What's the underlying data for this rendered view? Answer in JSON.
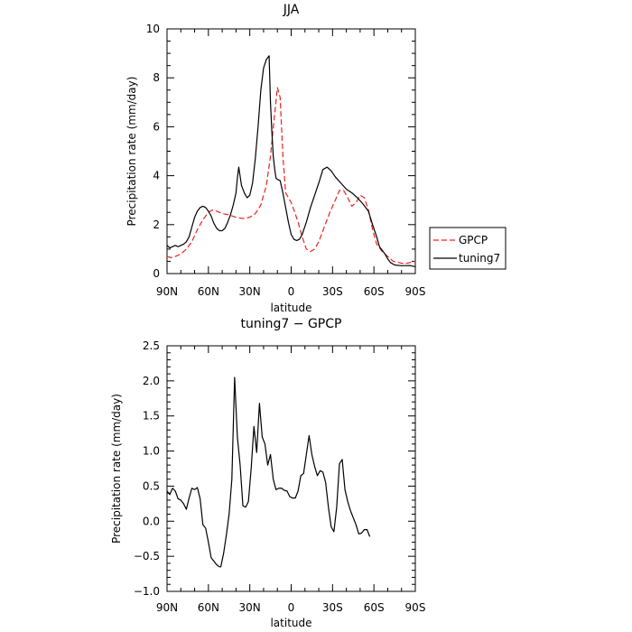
{
  "chart_data": [
    {
      "type": "line",
      "title": "JJA",
      "xlabel": "latitude",
      "ylabel": "Precipitation rate  (mm/day)",
      "x_direction": "90N to 90S",
      "xlim": [
        90,
        -90
      ],
      "ylim": [
        0,
        10
      ],
      "x_ticks": [
        {
          "value": 90,
          "label": "90N"
        },
        {
          "value": 60,
          "label": "60N"
        },
        {
          "value": 30,
          "label": "30N"
        },
        {
          "value": 0,
          "label": "0"
        },
        {
          "value": -30,
          "label": "30S"
        },
        {
          "value": -60,
          "label": "60S"
        },
        {
          "value": -90,
          "label": "90S"
        }
      ],
      "y_ticks": [
        {
          "value": 0,
          "label": "0"
        },
        {
          "value": 2,
          "label": "2"
        },
        {
          "value": 4,
          "label": "4"
        },
        {
          "value": 6,
          "label": "6"
        },
        {
          "value": 8,
          "label": "8"
        },
        {
          "value": 10,
          "label": "10"
        }
      ],
      "grid": false,
      "legend_position": "right",
      "series": [
        {
          "name": "GPCP",
          "color": "#ee2222",
          "dash": "dashed",
          "points": [
            [
              90,
              0.7
            ],
            [
              87,
              0.65
            ],
            [
              84,
              0.7
            ],
            [
              80,
              0.8
            ],
            [
              76,
              1.0
            ],
            [
              72,
              1.3
            ],
            [
              68,
              1.8
            ],
            [
              64,
              2.2
            ],
            [
              60,
              2.5
            ],
            [
              57,
              2.6
            ],
            [
              54,
              2.55
            ],
            [
              50,
              2.45
            ],
            [
              45,
              2.4
            ],
            [
              40,
              2.3
            ],
            [
              35,
              2.25
            ],
            [
              30,
              2.3
            ],
            [
              26,
              2.45
            ],
            [
              22,
              2.8
            ],
            [
              18,
              3.6
            ],
            [
              15,
              4.8
            ],
            [
              12,
              6.5
            ],
            [
              10,
              7.6
            ],
            [
              8,
              7.2
            ],
            [
              6,
              4.8
            ],
            [
              4,
              3.3
            ],
            [
              2,
              3.1
            ],
            [
              0,
              2.9
            ],
            [
              -2,
              2.6
            ],
            [
              -5,
              2.1
            ],
            [
              -8,
              1.5
            ],
            [
              -11,
              1.0
            ],
            [
              -14,
              0.9
            ],
            [
              -17,
              1.0
            ],
            [
              -20,
              1.3
            ],
            [
              -24,
              1.9
            ],
            [
              -28,
              2.5
            ],
            [
              -32,
              3.0
            ],
            [
              -35,
              3.4
            ],
            [
              -38,
              3.4
            ],
            [
              -41,
              3.1
            ],
            [
              -44,
              2.75
            ],
            [
              -47,
              2.9
            ],
            [
              -50,
              3.2
            ],
            [
              -53,
              3.1
            ],
            [
              -56,
              2.6
            ],
            [
              -59,
              1.8
            ],
            [
              -62,
              1.2
            ],
            [
              -66,
              0.9
            ],
            [
              -70,
              0.7
            ],
            [
              -74,
              0.5
            ],
            [
              -78,
              0.45
            ],
            [
              -82,
              0.4
            ],
            [
              -86,
              0.45
            ],
            [
              -90,
              0.5
            ]
          ]
        },
        {
          "name": "tuning7",
          "color": "#000000",
          "dash": "solid",
          "points": [
            [
              90,
              1.15
            ],
            [
              88,
              1.05
            ],
            [
              86,
              1.1
            ],
            [
              84,
              1.15
            ],
            [
              82,
              1.1
            ],
            [
              80,
              1.15
            ],
            [
              78,
              1.2
            ],
            [
              76,
              1.3
            ],
            [
              74,
              1.5
            ],
            [
              72,
              1.9
            ],
            [
              70,
              2.3
            ],
            [
              68,
              2.55
            ],
            [
              66,
              2.7
            ],
            [
              64,
              2.75
            ],
            [
              62,
              2.7
            ],
            [
              60,
              2.55
            ],
            [
              58,
              2.35
            ],
            [
              56,
              2.05
            ],
            [
              54,
              1.85
            ],
            [
              52,
              1.75
            ],
            [
              50,
              1.75
            ],
            [
              48,
              1.85
            ],
            [
              46,
              2.1
            ],
            [
              44,
              2.4
            ],
            [
              42,
              2.8
            ],
            [
              40,
              3.3
            ],
            [
              39,
              3.9
            ],
            [
              38,
              4.35
            ],
            [
              36,
              3.6
            ],
            [
              34,
              3.3
            ],
            [
              32,
              3.1
            ],
            [
              30,
              3.2
            ],
            [
              28,
              3.7
            ],
            [
              26,
              4.7
            ],
            [
              24,
              6.0
            ],
            [
              22,
              7.5
            ],
            [
              20,
              8.4
            ],
            [
              18,
              8.75
            ],
            [
              16,
              8.9
            ],
            [
              15,
              7.0
            ],
            [
              14,
              5.8
            ],
            [
              13,
              4.8
            ],
            [
              12,
              4.3
            ],
            [
              11,
              3.9
            ],
            [
              10,
              3.85
            ],
            [
              8,
              3.8
            ],
            [
              6,
              3.3
            ],
            [
              4,
              2.7
            ],
            [
              2,
              2.1
            ],
            [
              0,
              1.6
            ],
            [
              -2,
              1.4
            ],
            [
              -4,
              1.35
            ],
            [
              -6,
              1.4
            ],
            [
              -8,
              1.6
            ],
            [
              -11,
              2.1
            ],
            [
              -14,
              2.7
            ],
            [
              -17,
              3.2
            ],
            [
              -20,
              3.7
            ],
            [
              -23,
              4.25
            ],
            [
              -26,
              4.35
            ],
            [
              -29,
              4.2
            ],
            [
              -32,
              3.95
            ],
            [
              -36,
              3.7
            ],
            [
              -40,
              3.45
            ],
            [
              -44,
              3.3
            ],
            [
              -48,
              3.1
            ],
            [
              -52,
              2.85
            ],
            [
              -56,
              2.55
            ],
            [
              -59,
              2.0
            ],
            [
              -62,
              1.5
            ],
            [
              -64,
              1.1
            ],
            [
              -66,
              0.95
            ],
            [
              -68,
              0.8
            ],
            [
              -70,
              0.6
            ],
            [
              -72,
              0.45
            ],
            [
              -75,
              0.35
            ],
            [
              -80,
              0.32
            ],
            [
              -86,
              0.33
            ],
            [
              -90,
              0.28
            ]
          ]
        }
      ]
    },
    {
      "type": "line",
      "title": "tuning7 − GPCP",
      "xlabel": "latitude",
      "ylabel": "Precipitation rate  (mm/day)",
      "x_direction": "90N to 90S",
      "xlim": [
        90,
        -90
      ],
      "ylim": [
        -1.0,
        2.5
      ],
      "x_ticks": [
        {
          "value": 90,
          "label": "90N"
        },
        {
          "value": 60,
          "label": "60N"
        },
        {
          "value": 30,
          "label": "30N"
        },
        {
          "value": 0,
          "label": "0"
        },
        {
          "value": -30,
          "label": "30S"
        },
        {
          "value": -60,
          "label": "60S"
        },
        {
          "value": -90,
          "label": "90S"
        }
      ],
      "y_ticks": [
        {
          "value": -1.0,
          "label": "−1.0"
        },
        {
          "value": -0.5,
          "label": "−0.5"
        },
        {
          "value": 0.0,
          "label": "0.0"
        },
        {
          "value": 0.5,
          "label": "0.5"
        },
        {
          "value": 1.0,
          "label": "1.0"
        },
        {
          "value": 1.5,
          "label": "1.5"
        },
        {
          "value": 2.0,
          "label": "2.0"
        },
        {
          "value": 2.5,
          "label": "2.5"
        }
      ],
      "grid": false,
      "series": [
        {
          "color": "#000000",
          "dash": "solid",
          "points": [
            [
              90,
              0.43
            ],
            [
              88,
              0.38
            ],
            [
              86,
              0.47
            ],
            [
              84,
              0.43
            ],
            [
              82,
              0.32
            ],
            [
              80,
              0.3
            ],
            [
              78,
              0.25
            ],
            [
              76,
              0.17
            ],
            [
              74,
              0.33
            ],
            [
              72,
              0.47
            ],
            [
              70,
              0.45
            ],
            [
              68,
              0.48
            ],
            [
              66,
              0.32
            ],
            [
              64,
              -0.05
            ],
            [
              62,
              -0.1
            ],
            [
              60,
              -0.3
            ],
            [
              58,
              -0.52
            ],
            [
              56,
              -0.57
            ],
            [
              54,
              -0.62
            ],
            [
              52,
              -0.65
            ],
            [
              51,
              -0.65
            ],
            [
              49,
              -0.46
            ],
            [
              47,
              -0.2
            ],
            [
              45,
              0.1
            ],
            [
              43,
              0.6
            ],
            [
              41,
              2.05
            ],
            [
              39,
              1.2
            ],
            [
              37,
              0.8
            ],
            [
              35,
              0.22
            ],
            [
              33,
              0.2
            ],
            [
              31,
              0.28
            ],
            [
              29,
              0.75
            ],
            [
              27,
              1.35
            ],
            [
              25,
              0.98
            ],
            [
              23,
              1.68
            ],
            [
              21,
              1.2
            ],
            [
              19,
              1.1
            ],
            [
              17,
              0.8
            ],
            [
              15,
              0.95
            ],
            [
              13,
              0.6
            ],
            [
              11,
              0.45
            ],
            [
              9,
              0.47
            ],
            [
              7,
              0.47
            ],
            [
              5,
              0.44
            ],
            [
              3,
              0.43
            ],
            [
              1,
              0.35
            ],
            [
              -1,
              0.33
            ],
            [
              -3,
              0.33
            ],
            [
              -5,
              0.43
            ],
            [
              -7,
              0.65
            ],
            [
              -9,
              0.68
            ],
            [
              -11,
              0.95
            ],
            [
              -13,
              1.22
            ],
            [
              -15,
              0.95
            ],
            [
              -17,
              0.78
            ],
            [
              -19,
              0.65
            ],
            [
              -21,
              0.72
            ],
            [
              -23,
              0.7
            ],
            [
              -25,
              0.55
            ],
            [
              -27,
              0.2
            ],
            [
              -29,
              -0.08
            ],
            [
              -31,
              -0.15
            ],
            [
              -33,
              0.2
            ],
            [
              -35,
              0.82
            ],
            [
              -37,
              0.88
            ],
            [
              -39,
              0.45
            ],
            [
              -41,
              0.28
            ],
            [
              -43,
              0.15
            ],
            [
              -45,
              0.05
            ],
            [
              -47,
              -0.05
            ],
            [
              -49,
              -0.18
            ],
            [
              -51,
              -0.17
            ],
            [
              -53,
              -0.12
            ],
            [
              -55,
              -0.12
            ],
            [
              -57,
              -0.22
            ]
          ]
        }
      ]
    }
  ]
}
